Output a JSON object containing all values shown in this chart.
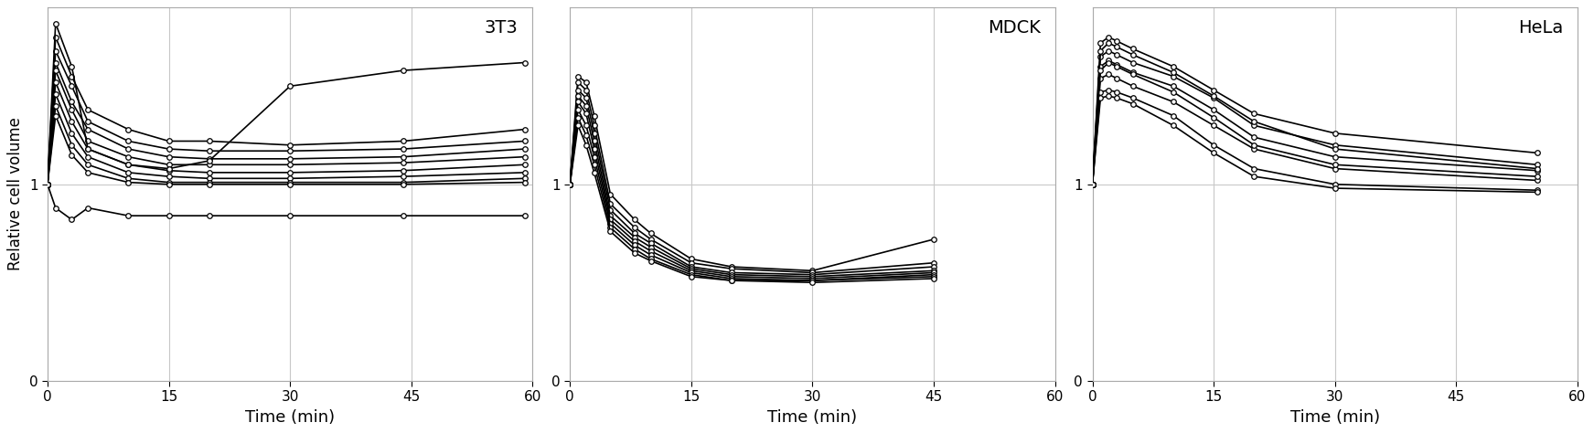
{
  "panels": [
    {
      "title": "3T3",
      "xlabel": "Time (min)",
      "ylabel": "Relative cell volume",
      "xlim": [
        0,
        60
      ],
      "ylim": [
        0,
        1.9
      ],
      "xticks": [
        0,
        15,
        30,
        45,
        60
      ],
      "ytick_vals": [
        0,
        1
      ],
      "ytick_labels": [
        "0",
        "1"
      ],
      "traces": [
        {
          "t": [
            0,
            1,
            3,
            5,
            10,
            15,
            20,
            30,
            44,
            59
          ],
          "v": [
            1.0,
            1.75,
            1.55,
            1.38,
            1.28,
            1.22,
            1.22,
            1.2,
            1.22,
            1.28
          ]
        },
        {
          "t": [
            0,
            1,
            3,
            5,
            10,
            15,
            20,
            30,
            44,
            59
          ],
          "v": [
            1.0,
            1.68,
            1.5,
            1.32,
            1.22,
            1.18,
            1.17,
            1.17,
            1.18,
            1.22
          ]
        },
        {
          "t": [
            0,
            1,
            3,
            5,
            10,
            15,
            20,
            30,
            44,
            59
          ],
          "v": [
            1.0,
            1.62,
            1.42,
            1.28,
            1.18,
            1.14,
            1.13,
            1.13,
            1.14,
            1.18
          ]
        },
        {
          "t": [
            0,
            1,
            3,
            5,
            10,
            15,
            20,
            30,
            44,
            59
          ],
          "v": [
            1.0,
            1.58,
            1.38,
            1.22,
            1.14,
            1.1,
            1.1,
            1.1,
            1.11,
            1.14
          ]
        },
        {
          "t": [
            0,
            1,
            3,
            5,
            10,
            15,
            20,
            30,
            44,
            59
          ],
          "v": [
            1.0,
            1.52,
            1.32,
            1.18,
            1.1,
            1.07,
            1.06,
            1.06,
            1.07,
            1.1
          ]
        },
        {
          "t": [
            0,
            1,
            3,
            5,
            10,
            15,
            20,
            30,
            44,
            59
          ],
          "v": [
            1.0,
            1.46,
            1.26,
            1.14,
            1.06,
            1.04,
            1.03,
            1.03,
            1.04,
            1.06
          ]
        },
        {
          "t": [
            0,
            1,
            3,
            5,
            10,
            15,
            20,
            30,
            44,
            59
          ],
          "v": [
            1.0,
            1.4,
            1.2,
            1.1,
            1.03,
            1.01,
            1.01,
            1.01,
            1.01,
            1.03
          ]
        },
        {
          "t": [
            0,
            1,
            3,
            5,
            10,
            15,
            20,
            30,
            44,
            59
          ],
          "v": [
            1.0,
            1.35,
            1.15,
            1.06,
            1.01,
            1.0,
            1.0,
            1.0,
            1.0,
            1.01
          ]
        },
        {
          "t": [
            0,
            1,
            3,
            5,
            10,
            15,
            20,
            30,
            44,
            59
          ],
          "v": [
            1.0,
            1.82,
            1.6,
            1.18,
            1.1,
            1.08,
            1.12,
            1.5,
            1.58,
            1.62
          ]
        },
        {
          "t": [
            0,
            1,
            3,
            5,
            10,
            15,
            20,
            30,
            44,
            59
          ],
          "v": [
            1.0,
            0.88,
            0.82,
            0.88,
            0.84,
            0.84,
            0.84,
            0.84,
            0.84,
            0.84
          ]
        }
      ]
    },
    {
      "title": "MDCK",
      "xlabel": "Time (min)",
      "ylabel": "",
      "xlim": [
        0,
        60
      ],
      "ylim": [
        0,
        1.9
      ],
      "xticks": [
        0,
        15,
        30,
        45,
        60
      ],
      "ytick_vals": [
        0,
        1
      ],
      "ytick_labels": [
        "0",
        "1"
      ],
      "traces": [
        {
          "t": [
            0,
            1,
            2,
            3,
            5,
            8,
            10,
            15,
            20,
            30,
            45
          ],
          "v": [
            1.0,
            1.55,
            1.52,
            1.35,
            0.95,
            0.82,
            0.75,
            0.62,
            0.58,
            0.56,
            0.72
          ]
        },
        {
          "t": [
            0,
            1,
            2,
            3,
            5,
            8,
            10,
            15,
            20,
            30,
            45
          ],
          "v": [
            1.0,
            1.52,
            1.48,
            1.3,
            0.9,
            0.78,
            0.72,
            0.6,
            0.57,
            0.55,
            0.6
          ]
        },
        {
          "t": [
            0,
            1,
            2,
            3,
            5,
            8,
            10,
            15,
            20,
            30,
            45
          ],
          "v": [
            1.0,
            1.48,
            1.44,
            1.26,
            0.87,
            0.75,
            0.7,
            0.58,
            0.55,
            0.54,
            0.58
          ]
        },
        {
          "t": [
            0,
            1,
            2,
            3,
            5,
            8,
            10,
            15,
            20,
            30,
            45
          ],
          "v": [
            1.0,
            1.45,
            1.4,
            1.22,
            0.84,
            0.73,
            0.68,
            0.57,
            0.54,
            0.53,
            0.56
          ]
        },
        {
          "t": [
            0,
            1,
            2,
            3,
            5,
            8,
            10,
            15,
            20,
            30,
            45
          ],
          "v": [
            1.0,
            1.42,
            1.36,
            1.18,
            0.82,
            0.71,
            0.66,
            0.56,
            0.53,
            0.52,
            0.55
          ]
        },
        {
          "t": [
            0,
            1,
            2,
            3,
            5,
            8,
            10,
            15,
            20,
            30,
            45
          ],
          "v": [
            1.0,
            1.38,
            1.3,
            1.14,
            0.8,
            0.69,
            0.64,
            0.55,
            0.52,
            0.51,
            0.54
          ]
        },
        {
          "t": [
            0,
            1,
            2,
            3,
            5,
            8,
            10,
            15,
            20,
            30,
            45
          ],
          "v": [
            1.0,
            1.34,
            1.25,
            1.1,
            0.78,
            0.67,
            0.62,
            0.54,
            0.51,
            0.51,
            0.53
          ]
        },
        {
          "t": [
            0,
            1,
            2,
            3,
            5,
            8,
            10,
            15,
            20,
            30,
            45
          ],
          "v": [
            1.0,
            1.3,
            1.2,
            1.06,
            0.76,
            0.65,
            0.61,
            0.53,
            0.51,
            0.5,
            0.52
          ]
        }
      ]
    },
    {
      "title": "HeLa",
      "xlabel": "Time (min)",
      "ylabel": "",
      "xlim": [
        0,
        60
      ],
      "ylim": [
        0,
        1.9
      ],
      "xticks": [
        0,
        15,
        30,
        45,
        60
      ],
      "ytick_vals": [
        0,
        1
      ],
      "ytick_labels": [
        "0",
        "1"
      ],
      "traces": [
        {
          "t": [
            0,
            1,
            2,
            3,
            5,
            10,
            15,
            20,
            30,
            55
          ],
          "v": [
            1.0,
            1.65,
            1.68,
            1.66,
            1.62,
            1.55,
            1.44,
            1.3,
            1.2,
            1.1
          ]
        },
        {
          "t": [
            0,
            1,
            2,
            3,
            5,
            10,
            15,
            20,
            30,
            55
          ],
          "v": [
            1.0,
            1.6,
            1.63,
            1.61,
            1.57,
            1.5,
            1.38,
            1.24,
            1.14,
            1.07
          ]
        },
        {
          "t": [
            0,
            1,
            2,
            3,
            5,
            10,
            15,
            20,
            30,
            55
          ],
          "v": [
            1.0,
            1.72,
            1.75,
            1.73,
            1.69,
            1.6,
            1.48,
            1.36,
            1.26,
            1.16
          ]
        },
        {
          "t": [
            0,
            1,
            2,
            3,
            5,
            10,
            15,
            20,
            30,
            55
          ],
          "v": [
            1.0,
            1.54,
            1.56,
            1.54,
            1.5,
            1.42,
            1.3,
            1.18,
            1.08,
            1.02
          ]
        },
        {
          "t": [
            0,
            1,
            2,
            3,
            5,
            10,
            15,
            20,
            30,
            55
          ],
          "v": [
            1.0,
            1.68,
            1.72,
            1.7,
            1.66,
            1.57,
            1.45,
            1.32,
            1.18,
            1.08
          ]
        },
        {
          "t": [
            0,
            1,
            2,
            3,
            5,
            10,
            15,
            20,
            30,
            55
          ],
          "v": [
            1.0,
            1.47,
            1.48,
            1.47,
            1.44,
            1.35,
            1.2,
            1.08,
            1.0,
            0.97
          ]
        },
        {
          "t": [
            0,
            1,
            2,
            3,
            5,
            10,
            15,
            20,
            30,
            55
          ],
          "v": [
            1.0,
            1.44,
            1.45,
            1.44,
            1.41,
            1.3,
            1.16,
            1.04,
            0.98,
            0.96
          ]
        },
        {
          "t": [
            0,
            1,
            2,
            3,
            5,
            10,
            15,
            20,
            30,
            55
          ],
          "v": [
            1.0,
            1.58,
            1.62,
            1.6,
            1.56,
            1.47,
            1.34,
            1.2,
            1.1,
            1.04
          ]
        }
      ]
    }
  ],
  "line_color": "#000000",
  "marker_facecolor": "#ffffff",
  "marker_edgecolor": "#000000",
  "marker_size": 4.0,
  "line_width": 1.2,
  "grid_color": "#c8c8c8",
  "background_color": "#ffffff",
  "font_family": "Arial"
}
